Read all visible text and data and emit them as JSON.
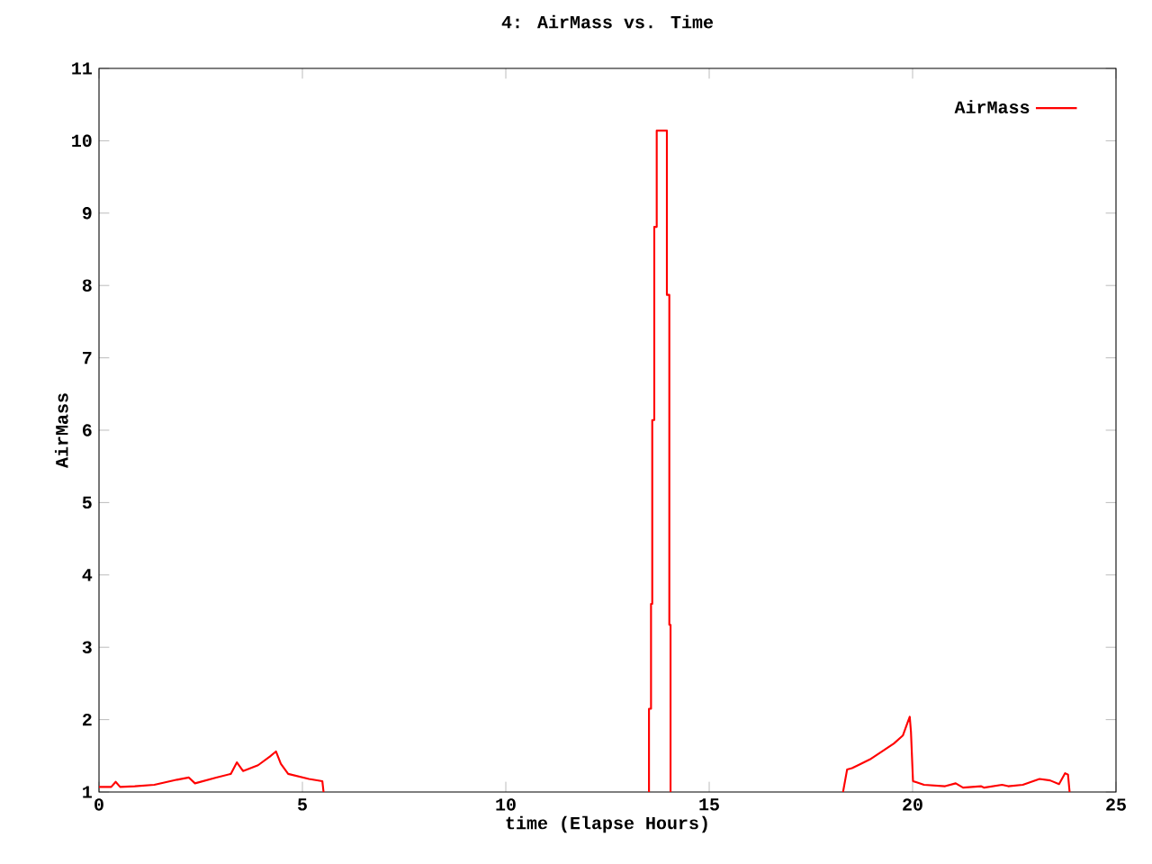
{
  "chart_data": {
    "type": "line",
    "title": "4: AirMass vs. Time",
    "xlabel": "time (Elapse Hours)",
    "ylabel": "AirMass",
    "x": [
      0,
      0.3,
      0.41,
      0.52,
      0.88,
      1.36,
      1.92,
      2.21,
      2.36,
      2.88,
      3.24,
      3.39,
      3.54,
      3.91,
      4.2,
      4.35,
      4.47,
      4.65,
      5.16,
      5.49,
      5.52,
      9.5,
      13.52,
      13.52,
      13.57,
      13.57,
      13.6,
      13.6,
      13.65,
      13.65,
      13.71,
      13.71,
      13.96,
      13.96,
      14.02,
      14.02,
      14.05,
      14.05,
      16,
      18.29,
      18.39,
      18.51,
      18.66,
      18.95,
      19.25,
      19.54,
      19.76,
      19.87,
      19.93,
      19.96,
      20.01,
      20.28,
      20.8,
      21.06,
      21.24,
      21.68,
      21.76,
      22.2,
      22.35,
      22.71,
      23.12,
      23.38,
      23.6,
      23.75,
      23.82,
      23.86
    ],
    "series": [
      {
        "name": "AirMass",
        "color": "#ff0000",
        "values": [
          1.07,
          1.07,
          1.14,
          1.07,
          1.08,
          1.1,
          1.17,
          1.2,
          1.12,
          1.2,
          1.25,
          1.41,
          1.29,
          1.37,
          1.49,
          1.56,
          1.39,
          1.25,
          1.18,
          1.15,
          1.0,
          null,
          1.0,
          2.15,
          2.15,
          3.6,
          3.6,
          6.14,
          6.14,
          8.81,
          8.81,
          10.14,
          10.14,
          7.87,
          7.87,
          3.31,
          3.31,
          1.0,
          null,
          1.0,
          1.31,
          1.33,
          1.37,
          1.45,
          1.56,
          1.67,
          1.78,
          1.95,
          2.04,
          1.83,
          1.15,
          1.1,
          1.08,
          1.12,
          1.06,
          1.08,
          1.06,
          1.1,
          1.08,
          1.1,
          1.18,
          1.16,
          1.11,
          1.26,
          1.24,
          1.0
        ]
      }
    ],
    "xlim": [
      0,
      25
    ],
    "ylim": [
      1,
      11
    ],
    "xticks": [
      0,
      5,
      10,
      15,
      20,
      25
    ],
    "yticks": [
      1,
      2,
      3,
      4,
      5,
      6,
      7,
      8,
      9,
      10,
      11
    ],
    "legend": "top right",
    "grid": false,
    "marker": "none",
    "line_style": "solid"
  }
}
